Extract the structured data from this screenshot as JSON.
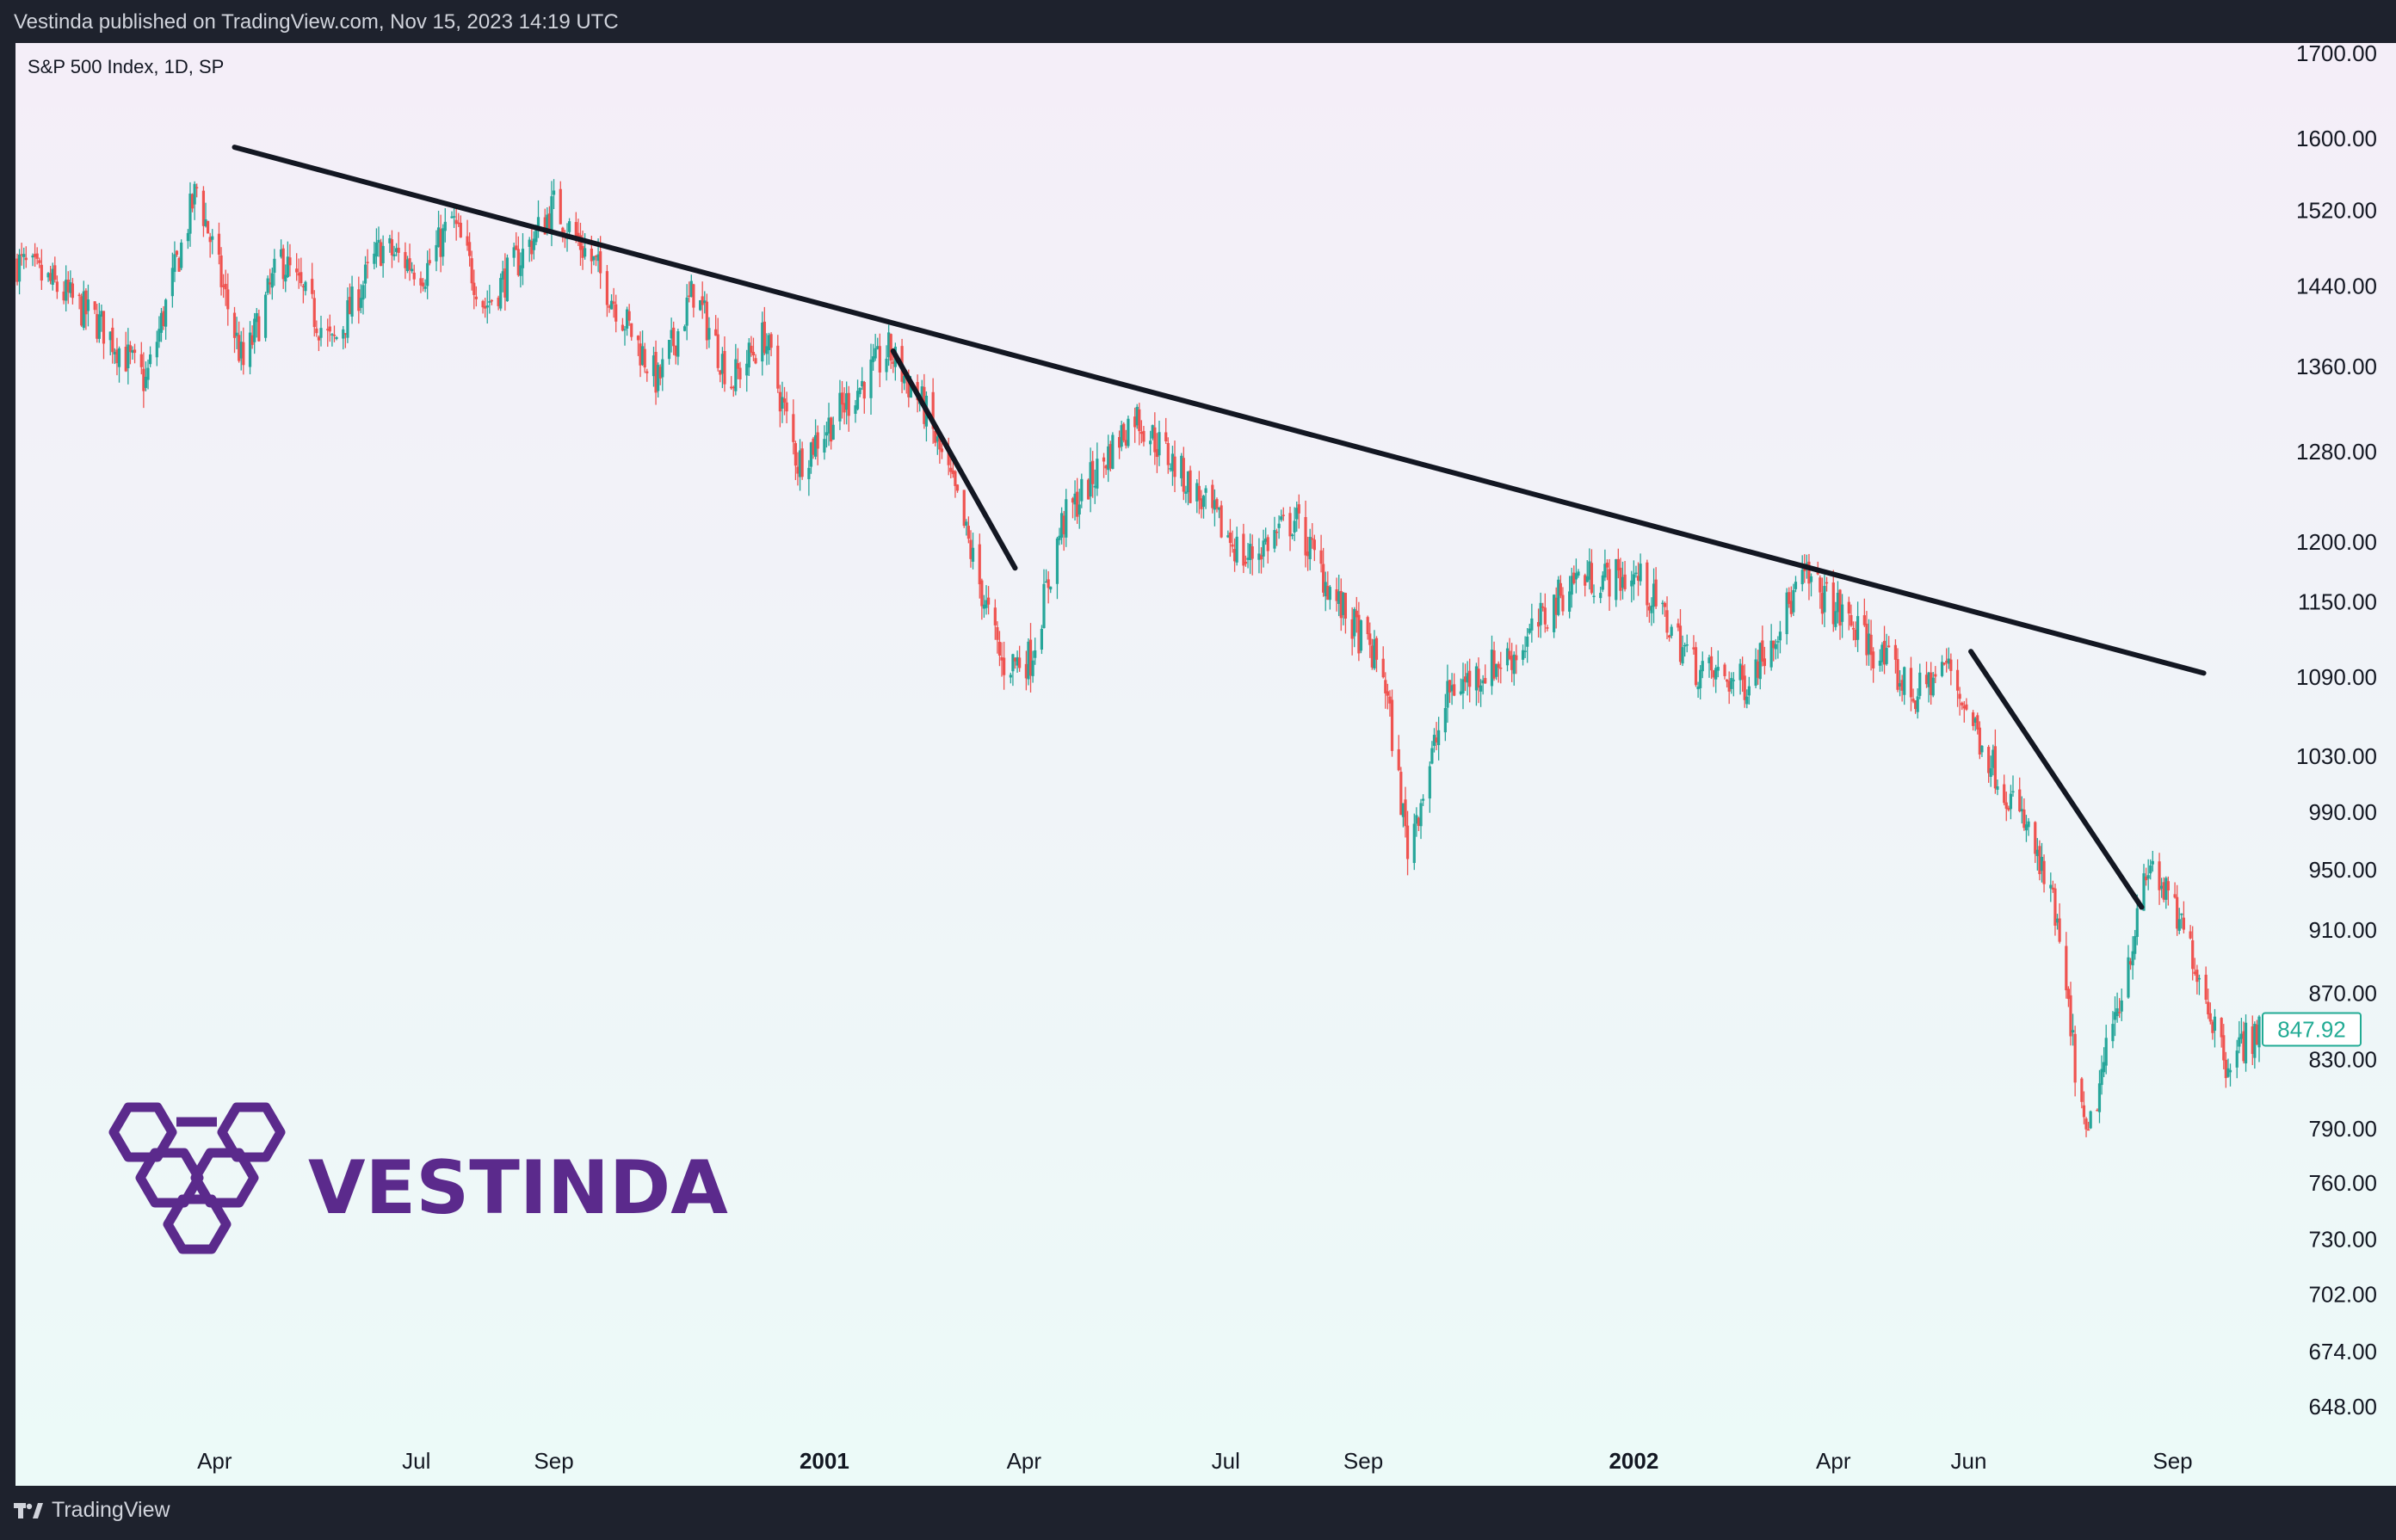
{
  "header": {
    "published": "Vestinda published on TradingView.com, Nov 15, 2023 14:19 UTC"
  },
  "footer": {
    "brand": "TradingView",
    "brand_icon": "tradingview-logo-icon"
  },
  "watermark": {
    "text": "VESTINDA",
    "color": "#5b2a8c"
  },
  "colors": {
    "up": "#26a69a",
    "down": "#ef5350",
    "trendline": "#131722",
    "last_price": "#22ab94"
  },
  "chart_data": {
    "type": "candlestick",
    "symbol_label": "S&P 500 Index, 1D, SP",
    "y_scale": "log",
    "ylim": [
      620,
      1700
    ],
    "y_ticks": [
      "1700.00",
      "1600.00",
      "1520.00",
      "1440.00",
      "1360.00",
      "1280.00",
      "1200.00",
      "1150.00",
      "1090.00",
      "1030.00",
      "990.00",
      "950.00",
      "910.00",
      "870.00",
      "830.00",
      "790.00",
      "760.00",
      "730.00",
      "702.00",
      "674.00",
      "648.00"
    ],
    "x_range": [
      "2000-01-03",
      "2002-10-10"
    ],
    "x_ticks": [
      {
        "label": "Apr",
        "date": "2000-04-01",
        "bold": false
      },
      {
        "label": "Jul",
        "date": "2000-07-01",
        "bold": false
      },
      {
        "label": "Sep",
        "date": "2000-09-01",
        "bold": false
      },
      {
        "label": "2001",
        "date": "2001-01-01",
        "bold": true
      },
      {
        "label": "Apr",
        "date": "2001-04-01",
        "bold": false
      },
      {
        "label": "Jul",
        "date": "2001-07-01",
        "bold": false
      },
      {
        "label": "Sep",
        "date": "2001-09-01",
        "bold": false
      },
      {
        "label": "2002",
        "date": "2002-01-01",
        "bold": true
      },
      {
        "label": "Apr",
        "date": "2002-04-01",
        "bold": false
      },
      {
        "label": "Jun",
        "date": "2002-06-01",
        "bold": false
      },
      {
        "label": "Sep",
        "date": "2002-09-01",
        "bold": false
      }
    ],
    "price_path": [
      [
        "2000-01-03",
        1465
      ],
      [
        "2000-01-20",
        1440
      ],
      [
        "2000-02-10",
        1400
      ],
      [
        "2000-03-01",
        1345
      ],
      [
        "2000-03-24",
        1545
      ],
      [
        "2000-04-14",
        1360
      ],
      [
        "2000-05-01",
        1470
      ],
      [
        "2000-05-24",
        1380
      ],
      [
        "2000-06-15",
        1480
      ],
      [
        "2000-07-05",
        1455
      ],
      [
        "2000-07-17",
        1510
      ],
      [
        "2000-08-01",
        1420
      ],
      [
        "2000-08-20",
        1480
      ],
      [
        "2000-09-01",
        1525
      ],
      [
        "2000-09-20",
        1460
      ],
      [
        "2000-10-18",
        1345
      ],
      [
        "2000-11-03",
        1435
      ],
      [
        "2000-11-20",
        1345
      ],
      [
        "2000-12-05",
        1390
      ],
      [
        "2000-12-20",
        1270
      ],
      [
        "2001-01-05",
        1310
      ],
      [
        "2001-01-30",
        1375
      ],
      [
        "2001-02-15",
        1320
      ],
      [
        "2001-03-01",
        1240
      ],
      [
        "2001-03-22",
        1100
      ],
      [
        "2001-04-04",
        1105
      ],
      [
        "2001-04-18",
        1215
      ],
      [
        "2001-05-21",
        1315
      ],
      [
        "2001-06-05",
        1275
      ],
      [
        "2001-07-10",
        1185
      ],
      [
        "2001-08-01",
        1220
      ],
      [
        "2001-08-20",
        1150
      ],
      [
        "2001-09-10",
        1095
      ],
      [
        "2001-09-21",
        965
      ],
      [
        "2001-10-10",
        1080
      ],
      [
        "2001-11-10",
        1110
      ],
      [
        "2001-12-05",
        1170
      ],
      [
        "2002-01-03",
        1170
      ],
      [
        "2002-01-30",
        1095
      ],
      [
        "2002-02-20",
        1085
      ],
      [
        "2002-03-19",
        1170
      ],
      [
        "2002-04-10",
        1130
      ],
      [
        "2002-05-08",
        1075
      ],
      [
        "2002-05-22",
        1100
      ],
      [
        "2002-06-10",
        1030
      ],
      [
        "2002-06-28",
        975
      ],
      [
        "2002-07-10",
        920
      ],
      [
        "2002-07-24",
        780
      ],
      [
        "2002-08-05",
        850
      ],
      [
        "2002-08-22",
        955
      ],
      [
        "2002-09-10",
        895
      ],
      [
        "2002-09-25",
        830
      ],
      [
        "2002-10-10",
        848
      ]
    ],
    "last_price": "847.92",
    "trendlines": [
      {
        "from": [
          "2000-04-10",
          1590
        ],
        "to": [
          "2002-09-15",
          1093
        ]
      },
      {
        "from": [
          "2001-02-01",
          1375
        ],
        "to": [
          "2001-03-28",
          1178
        ]
      },
      {
        "from": [
          "2002-06-02",
          1110
        ],
        "to": [
          "2002-08-18",
          925
        ]
      }
    ]
  }
}
